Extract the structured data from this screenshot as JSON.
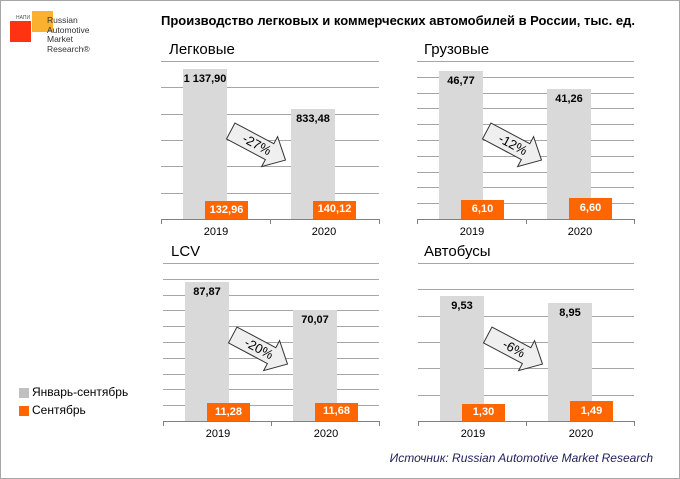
{
  "logo": {
    "small": "НАПИ",
    "lines": [
      "Russian",
      "Automotive",
      "Market",
      "Research®"
    ]
  },
  "title": "Производство легковых и коммерческих автомобилей в России, тыс. ед.",
  "legend": [
    {
      "label": "Январь-сентябрь",
      "color": "#c0c0c0"
    },
    {
      "label": "Сентябрь",
      "color": "#ff6600"
    }
  ],
  "source": "Источник: Russian Automotive Market Research",
  "colors": {
    "ytd": "#d9d9d9",
    "month": "#ff6600"
  },
  "chart_data": [
    {
      "type": "bar",
      "title": "Легковые",
      "categories": [
        "2019",
        "2020"
      ],
      "ylim": [
        0,
        1200
      ],
      "gridlines": 6,
      "series": [
        {
          "name": "Январь-сентябрь",
          "values": [
            1137.9,
            833.48
          ],
          "labels": [
            "1 137,90",
            "833,48"
          ]
        },
        {
          "name": "Сентябрь",
          "values": [
            132.96,
            140.12
          ],
          "labels": [
            "132,96",
            "140,12"
          ]
        }
      ],
      "change": "-27%"
    },
    {
      "type": "bar",
      "title": "Грузовые",
      "categories": [
        "2019",
        "2020"
      ],
      "ylim": [
        0,
        50
      ],
      "gridlines": 10,
      "series": [
        {
          "name": "Январь-сентябрь",
          "values": [
            46.77,
            41.26
          ],
          "labels": [
            "46,77",
            "41,26"
          ]
        },
        {
          "name": "Сентябрь",
          "values": [
            6.1,
            6.6
          ],
          "labels": [
            "6,10",
            "6,60"
          ]
        }
      ],
      "change": "-12%"
    },
    {
      "type": "bar",
      "title": "LCV",
      "categories": [
        "2019",
        "2020"
      ],
      "ylim": [
        0,
        100
      ],
      "gridlines": 10,
      "series": [
        {
          "name": "Январь-сентябрь",
          "values": [
            87.87,
            70.07
          ],
          "labels": [
            "87,87",
            "70,07"
          ]
        },
        {
          "name": "Сентябрь",
          "values": [
            11.28,
            11.68
          ],
          "labels": [
            "11,28",
            "11,68"
          ]
        }
      ],
      "change": "-20%"
    },
    {
      "type": "bar",
      "title": "Автобусы",
      "categories": [
        "2019",
        "2020"
      ],
      "ylim": [
        0,
        12
      ],
      "gridlines": 6,
      "series": [
        {
          "name": "Январь-сентябрь",
          "values": [
            9.53,
            8.95
          ],
          "labels": [
            "9,53",
            "8,95"
          ]
        },
        {
          "name": "Сентябрь",
          "values": [
            1.3,
            1.49
          ],
          "labels": [
            "1,30",
            "1,49"
          ]
        }
      ],
      "change": "-6%"
    }
  ]
}
